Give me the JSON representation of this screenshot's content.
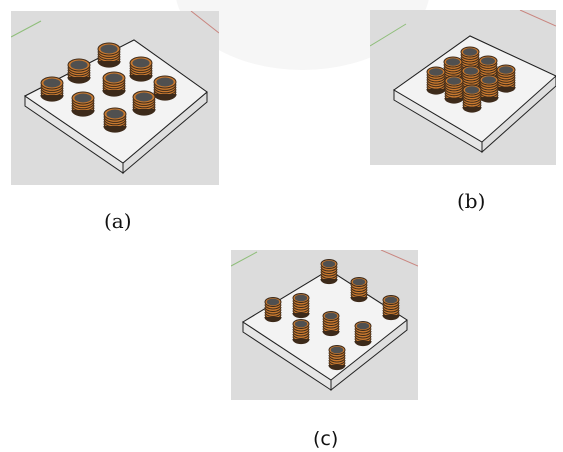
{
  "captions": {
    "a": "(a)",
    "b": "(b)",
    "c": "(c)"
  },
  "colors": {
    "background": "#dcdcdc",
    "plate_top": "#f3f3f3",
    "plate_side": "#dedede",
    "coil_copper": "#c8792f",
    "coil_dark": "#3d2a1a",
    "coil_top": "#505050",
    "axis_green": "#8fbe7a",
    "axis_red": "#c9857f"
  }
}
